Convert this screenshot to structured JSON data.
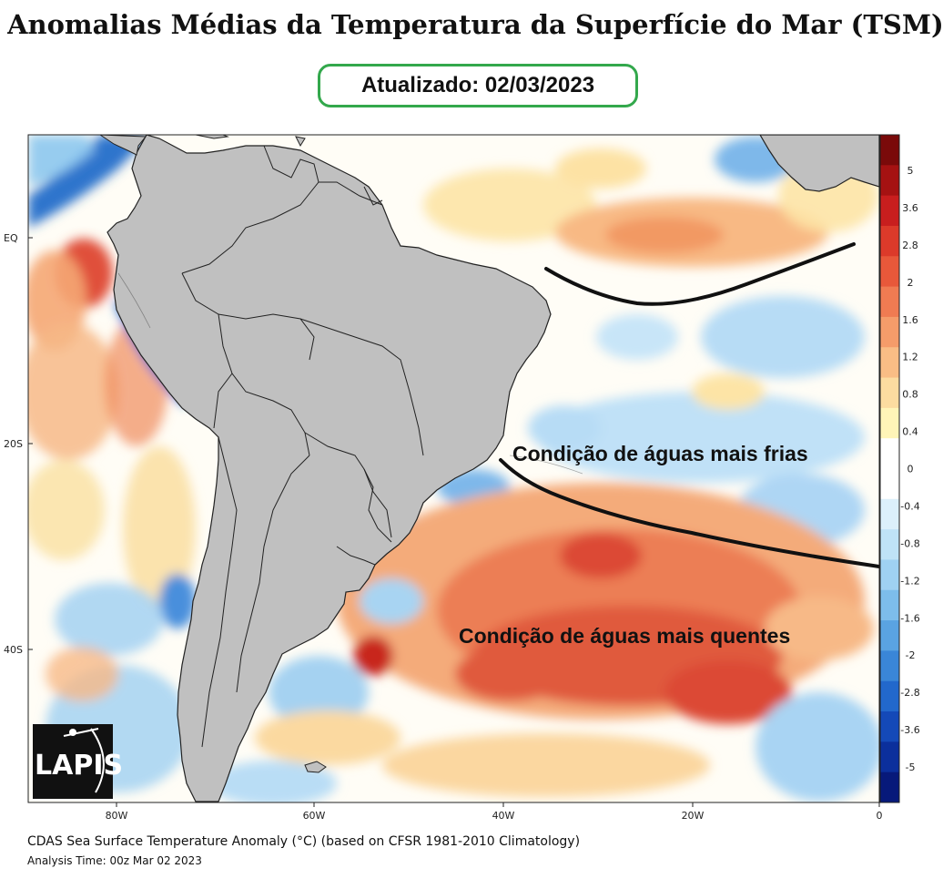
{
  "header": {
    "title": "Anomalias Médias da Temperatura da Superfície do Mar (TSM)",
    "updated": "Atualizado: 02/03/2023"
  },
  "map": {
    "annotations": {
      "cold": "Condição de águas mais frias",
      "warm": "Condição de águas mais quentes"
    },
    "lat_labels": [
      "EQ",
      "20S",
      "40S"
    ],
    "lon_labels": [
      "80W",
      "60W",
      "40W",
      "20W",
      "0"
    ],
    "land_color": "#c0c0c0"
  },
  "colorbar": {
    "labels": [
      "5",
      "3.6",
      "2.8",
      "2",
      "1.6",
      "1.2",
      "0.8",
      "0.4",
      "0",
      "-0.4",
      "-0.8",
      "-1.2",
      "-1.6",
      "-2",
      "-2.8",
      "-3.6",
      "-5"
    ],
    "colors": [
      "#7a0a0a",
      "#a51212",
      "#c81e1e",
      "#dc3a2a",
      "#e8583a",
      "#f07b52",
      "#f59c6a",
      "#f9bd85",
      "#fcdca0",
      "#fff5b8",
      "#ffffff",
      "#ffffff",
      "#dcf0fb",
      "#bfe3f7",
      "#9fd1f2",
      "#7dbdeb",
      "#5aa3e2",
      "#3a86d8",
      "#2268cc",
      "#1449b8",
      "#0b2f9c",
      "#07197a"
    ]
  },
  "logo": {
    "text": "LAPIS"
  },
  "footer": {
    "line1": "CDAS Sea Surface Temperature Anomaly (°C) (based on CFSR 1981-2010 Climatology)",
    "line2": "Analysis Time: 00z Mar 02 2023"
  }
}
